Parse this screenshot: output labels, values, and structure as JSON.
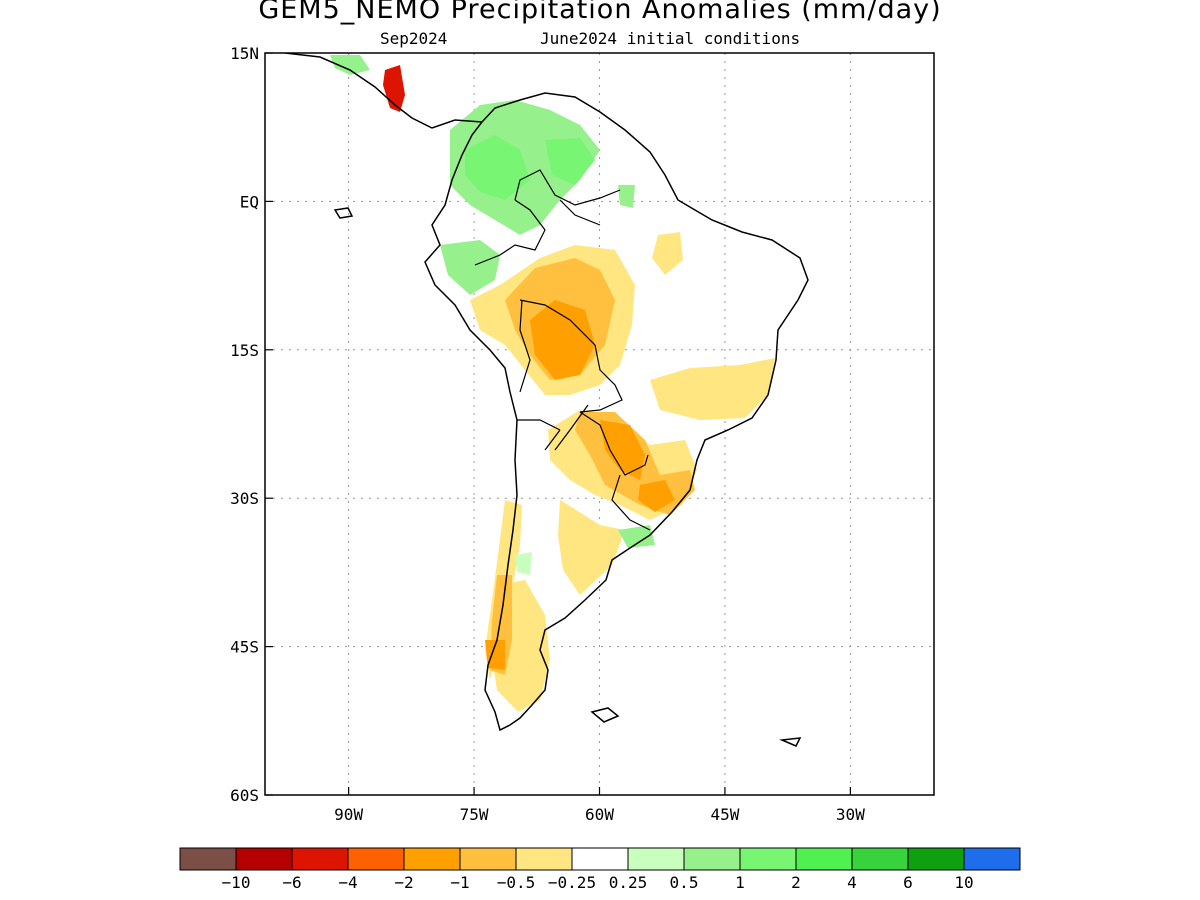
{
  "title": "GEM5_NEMO Precipitation Anomalies (mm/day)",
  "subtitle_left": "Sep2024",
  "subtitle_right": "June2024 initial conditions",
  "map": {
    "lon_range": [
      -100,
      -20
    ],
    "lat_range": [
      -60,
      15
    ],
    "grid": true,
    "lon_ticks": [
      {
        "value": -90,
        "label": "90W"
      },
      {
        "value": -75,
        "label": "75W"
      },
      {
        "value": -60,
        "label": "60W"
      },
      {
        "value": -45,
        "label": "45W"
      },
      {
        "value": -30,
        "label": "30W"
      }
    ],
    "lat_ticks": [
      {
        "value": 15,
        "label": "15N"
      },
      {
        "value": 0,
        "label": "EQ"
      },
      {
        "value": -15,
        "label": "15S"
      },
      {
        "value": -30,
        "label": "30S"
      },
      {
        "value": -45,
        "label": "45S"
      },
      {
        "value": -60,
        "label": "60S"
      }
    ]
  },
  "colorbar": {
    "colors": [
      "#7b4f46",
      "#b40000",
      "#dc1400",
      "#ff6000",
      "#ffa000",
      "#ffc040",
      "#ffe680",
      "#ffffff",
      "#c8ffbe",
      "#96f08c",
      "#78f573",
      "#50f050",
      "#37d23c",
      "#0fa00f",
      "#1e6eeb"
    ],
    "labels": [
      "−10",
      "−6",
      "−4",
      "−2",
      "−1",
      "−0.5",
      "−0.25",
      "0.25",
      "0.5",
      "1",
      "2",
      "4",
      "6",
      "10"
    ]
  },
  "anomaly_legend_colors": {
    "orange": "#ffa000",
    "light_orange": "#ffc040",
    "yellow": "#ffe680",
    "red_orange": "#ff6000",
    "red": "#dc1400",
    "light_green": "#96f08c",
    "green": "#78f573",
    "pale_green": "#c8ffbe"
  }
}
